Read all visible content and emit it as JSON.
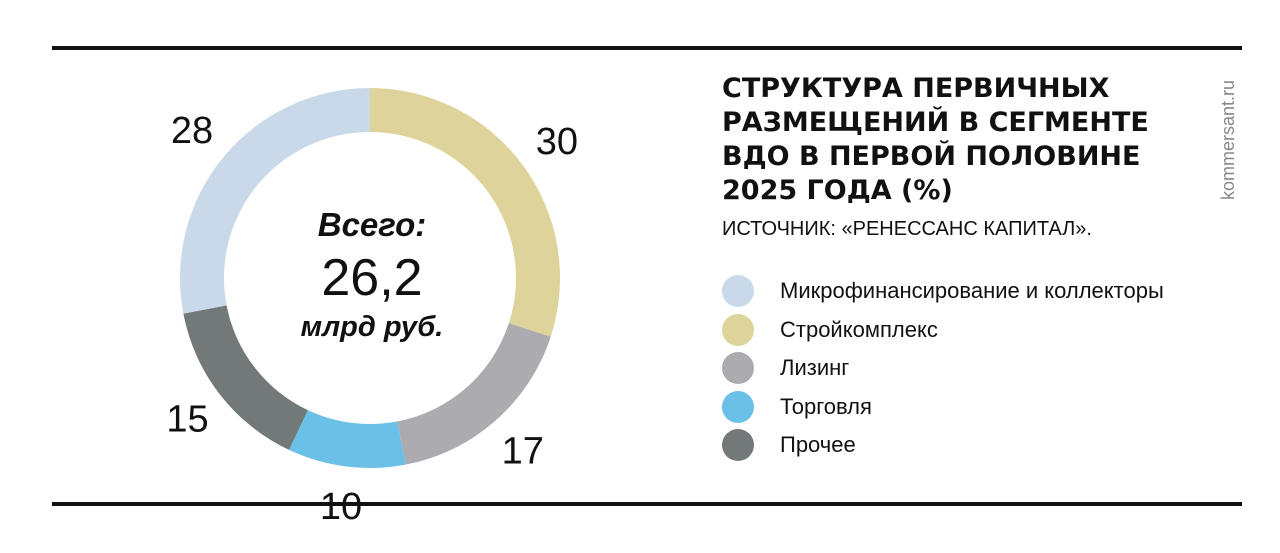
{
  "chart_data": {
    "type": "pie",
    "title": "СТРУКТУРА ПЕРВИЧНЫХ РАЗМЕЩЕНИЙ В СЕГМЕНТЕ ВДО В ПЕРВОЙ ПОЛОВИНЕ 2025 ГОДА (%)",
    "source": "ИСТОЧНИК: «РЕНЕССАНС КАПИТАЛ».",
    "total_label": "Всего:",
    "total_value": "26,2",
    "total_unit": "млрд руб.",
    "categories": [
      "Стройкомплекс",
      "Лизинг",
      "Торговля",
      "Прочее",
      "Микрофинансирование и коллекторы"
    ],
    "values": [
      30,
      17,
      10,
      15,
      28
    ],
    "colors": [
      "#ded39b",
      "#acabaf",
      "#6bc0e8",
      "#737879",
      "#cad9e9"
    ]
  },
  "legend": [
    {
      "label": "Микрофинансирование и коллекторы",
      "color": "#cad9e9"
    },
    {
      "label": "Стройкомплекс",
      "color": "#ded39b"
    },
    {
      "label": "Лизинг",
      "color": "#acabaf"
    },
    {
      "label": "Торговля",
      "color": "#6bc0e8"
    },
    {
      "label": "Прочее",
      "color": "#737879"
    }
  ],
  "brand": "kommersant.ru"
}
